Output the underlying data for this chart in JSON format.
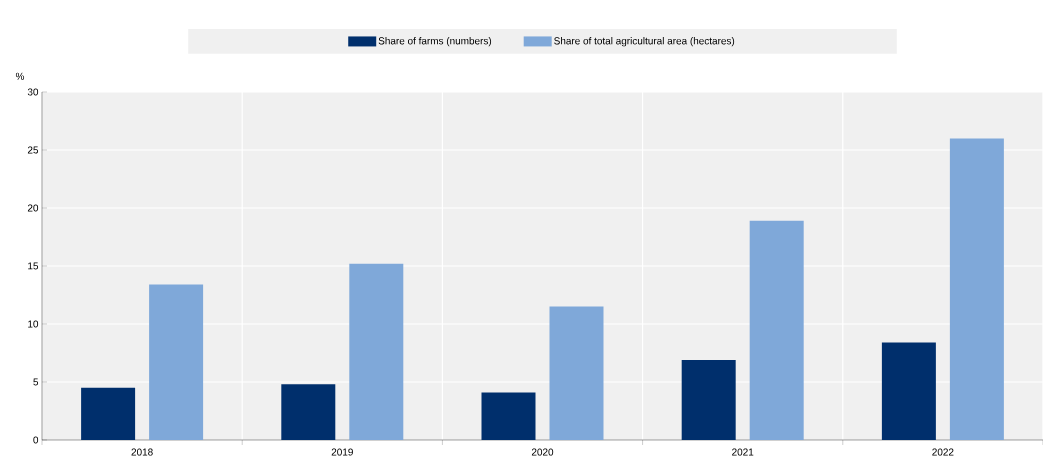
{
  "chart_data": {
    "type": "bar",
    "ylabel": "%",
    "categories": [
      "2018",
      "2019",
      "2020",
      "2021",
      "2022"
    ],
    "series": [
      {
        "name": "Share of farms (numbers)",
        "color": "#002f6c",
        "values": [
          4.5,
          4.8,
          4.1,
          6.9,
          8.4
        ]
      },
      {
        "name": "Share of total agricultural area (hectares)",
        "color": "#7fa8d9",
        "values": [
          13.4,
          15.2,
          11.5,
          18.9,
          26.0
        ]
      }
    ],
    "ylim": [
      0,
      30
    ],
    "yticks": [
      0,
      5,
      10,
      15,
      20,
      25,
      30
    ],
    "grid": true,
    "legend": "top"
  }
}
